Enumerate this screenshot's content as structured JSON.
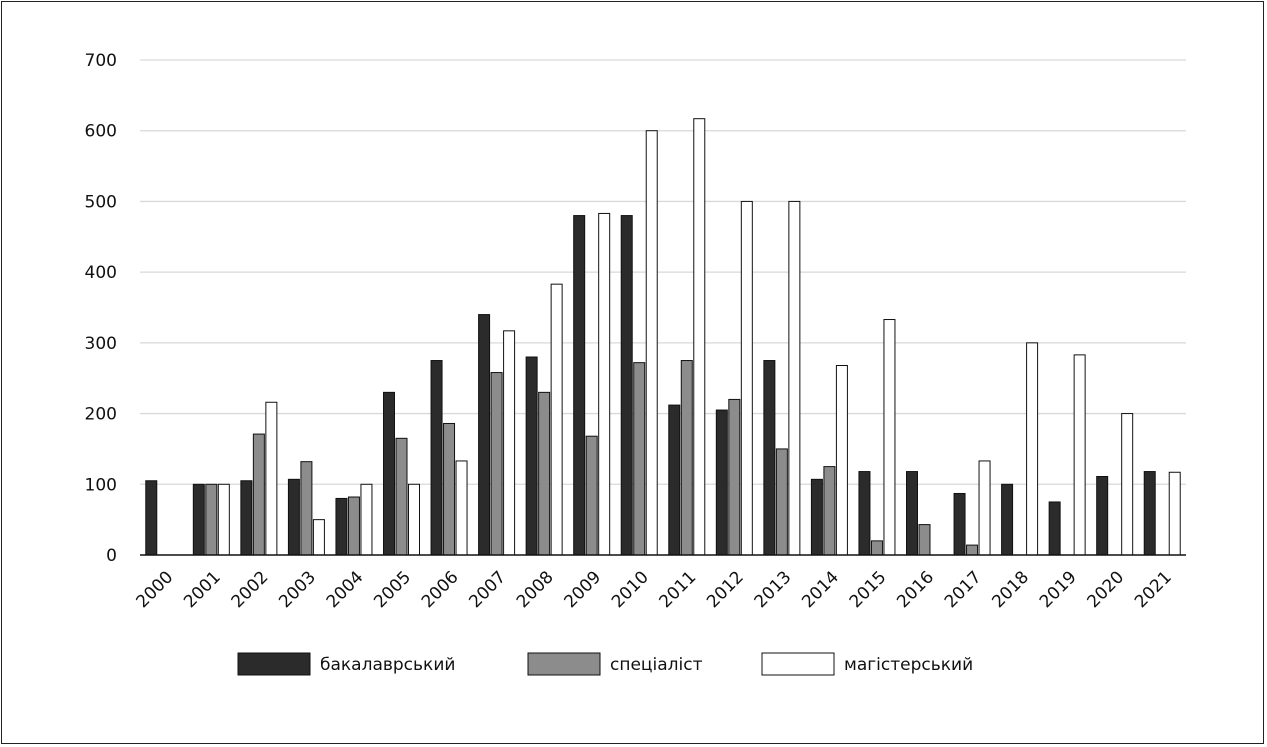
{
  "chart_data": {
    "type": "bar",
    "categories": [
      "2000",
      "2001",
      "2002",
      "2003",
      "2004",
      "2005",
      "2006",
      "2007",
      "2008",
      "2009",
      "2010",
      "2011",
      "2012",
      "2013",
      "2014",
      "2015",
      "2016",
      "2017",
      "2018",
      "2019",
      "2020",
      "2021"
    ],
    "series": [
      {
        "name": "бакалаврський",
        "color": "#2b2b2b",
        "values": [
          105,
          100,
          105,
          107,
          80,
          230,
          275,
          340,
          280,
          480,
          480,
          212,
          205,
          275,
          107,
          118,
          118,
          87,
          100,
          75,
          111,
          118
        ]
      },
      {
        "name": "спеціаліст",
        "color": "#8c8c8c",
        "values": [
          0,
          100,
          171,
          132,
          82,
          165,
          186,
          258,
          230,
          168,
          272,
          275,
          220,
          150,
          125,
          20,
          43,
          14,
          0,
          0,
          0,
          0
        ]
      },
      {
        "name": "магістерський",
        "color": "#ffffff",
        "values": [
          0,
          100,
          216,
          50,
          100,
          100,
          133,
          317,
          383,
          483,
          600,
          617,
          500,
          500,
          268,
          333,
          0,
          133,
          300,
          283,
          200,
          117
        ]
      }
    ],
    "yticks": [
      "0",
      "100",
      "200",
      "300",
      "400",
      "500",
      "600",
      "700"
    ],
    "ylim": [
      0,
      700
    ],
    "grid": true,
    "legend": "bottom",
    "title": "",
    "xlabel": "",
    "ylabel": ""
  }
}
